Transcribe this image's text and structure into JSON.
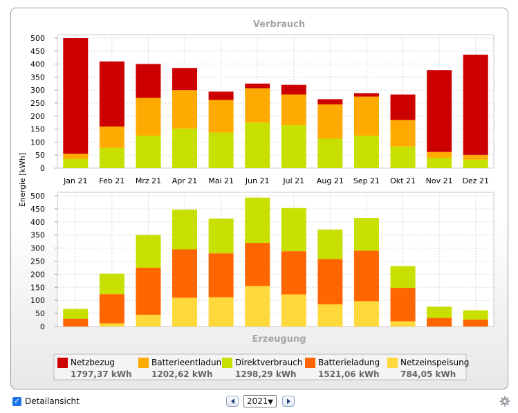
{
  "chart_data": [
    {
      "type": "bar",
      "stacked": true,
      "title": "Verbrauch",
      "ylabel": "Energie [kWh]",
      "ylim": [
        0,
        500
      ],
      "yticks": [
        0,
        50,
        100,
        150,
        200,
        250,
        300,
        350,
        400,
        450,
        500
      ],
      "grid": true,
      "categories": [
        "Jan 21",
        "Feb 21",
        "Mrz 21",
        "Apr 21",
        "Mai 21",
        "Jun 21",
        "Jul 21",
        "Aug 21",
        "Sep 21",
        "Okt 21",
        "Nov 21",
        "Dez 21"
      ],
      "series": [
        {
          "name": "Direktverbrauch",
          "color": "#c8e000",
          "values": [
            35,
            78,
            125,
            152,
            137,
            175,
            165,
            113,
            125,
            83,
            40,
            33
          ]
        },
        {
          "name": "Batterieentladung",
          "color": "#ffaa00",
          "values": [
            20,
            82,
            145,
            148,
            125,
            132,
            118,
            132,
            150,
            102,
            22,
            18
          ]
        },
        {
          "name": "Netzbezug",
          "color": "#cc0000",
          "values": [
            445,
            250,
            130,
            85,
            32,
            18,
            37,
            20,
            13,
            98,
            315,
            385
          ]
        }
      ]
    },
    {
      "type": "bar",
      "stacked": true,
      "title": "Erzeugung",
      "ylabel": "Energie [kWh]",
      "ylim": [
        0,
        500
      ],
      "yticks": [
        0,
        50,
        100,
        150,
        200,
        250,
        300,
        350,
        400,
        450,
        500
      ],
      "grid": true,
      "categories": [
        "Jan 21",
        "Feb 21",
        "Mrz 21",
        "Apr 21",
        "Mai 21",
        "Jun 21",
        "Jul 21",
        "Aug 21",
        "Sep 21",
        "Okt 21",
        "Nov 21",
        "Dez 21"
      ],
      "series": [
        {
          "name": "Netzeinspeisung",
          "color": "#ffd83c",
          "values": [
            0,
            12,
            45,
            110,
            112,
            155,
            123,
            85,
            97,
            20,
            0,
            0
          ]
        },
        {
          "name": "Batterieladung",
          "color": "#ff6600",
          "values": [
            30,
            112,
            180,
            185,
            168,
            165,
            165,
            173,
            193,
            128,
            33,
            27
          ]
        },
        {
          "name": "Direktverbrauch",
          "color": "#c8e000",
          "values": [
            37,
            78,
            125,
            152,
            133,
            173,
            165,
            113,
            125,
            83,
            43,
            35
          ]
        }
      ]
    }
  ],
  "legend": [
    {
      "label": "Netzbezug",
      "value": "1797,37 kWh",
      "color": "#cc0000"
    },
    {
      "label": "Batterieentladung",
      "value": "1202,62 kWh",
      "color": "#ffaa00"
    },
    {
      "label": "Direktverbrauch",
      "value": "1298,29 kWh",
      "color": "#c8e000"
    },
    {
      "label": "Batterieladung",
      "value": "1521,06 kWh",
      "color": "#ff6600"
    },
    {
      "label": "Netzeinspeisung",
      "value": "784,05 kWh",
      "color": "#ffd83c"
    }
  ],
  "footer": {
    "detail_label": "Detailansicht",
    "detail_checked": true,
    "year": "2021",
    "icons": [
      "checkbox-icon",
      "prev-arrow-icon",
      "next-arrow-icon",
      "dropdown-caret-icon",
      "gear-icon"
    ]
  }
}
